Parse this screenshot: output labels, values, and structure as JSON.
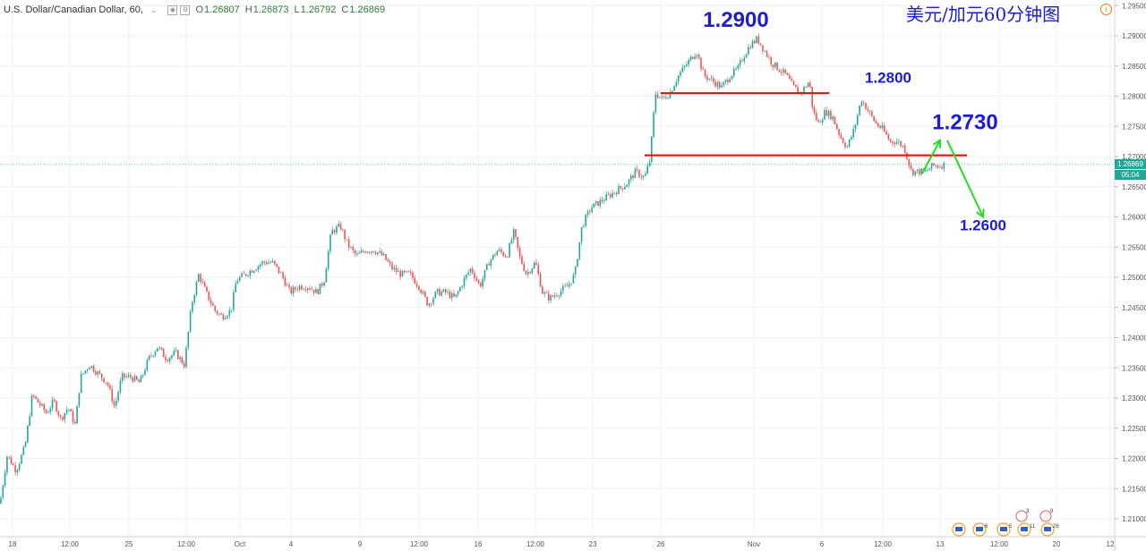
{
  "header": {
    "symbol": "U.S. Dollar/Canadian Dollar, 60,",
    "chevron": "⌄",
    "ohlc": [
      {
        "label": "O",
        "value": "1.26807"
      },
      {
        "label": "H",
        "value": "1.26873"
      },
      {
        "label": "L",
        "value": "1.26792"
      },
      {
        "label": "C",
        "value": "1.26869"
      }
    ]
  },
  "title_cn": "美元/加元60分钟图",
  "info_icon": "info-icon",
  "price_tag": {
    "price": "1.26869",
    "countdown": "05:04"
  },
  "colors": {
    "up": "#26a69a",
    "down": "#ef5350",
    "support": "#ff0000",
    "arrow": "#22dd22",
    "annotation": "#1c1cd6",
    "grid": "#eef0f3",
    "axis_text": "#555555"
  },
  "chart_data": {
    "type": "candlestick",
    "ylim": [
      1.205,
      1.2955
    ],
    "y_ticks": [
      {
        "value": 1.21,
        "label": "1.21000"
      },
      {
        "value": 1.215,
        "label": "1.21500"
      },
      {
        "value": 1.22,
        "label": "1.22000"
      },
      {
        "value": 1.225,
        "label": "1.22500"
      },
      {
        "value": 1.23,
        "label": "1.23000"
      },
      {
        "value": 1.235,
        "label": "1.23500"
      },
      {
        "value": 1.24,
        "label": "1.24000"
      },
      {
        "value": 1.245,
        "label": "1.24500"
      },
      {
        "value": 1.25,
        "label": "1.25000"
      },
      {
        "value": 1.255,
        "label": "1.25500"
      },
      {
        "value": 1.26,
        "label": "1.26000"
      },
      {
        "value": 1.265,
        "label": "1.26500"
      },
      {
        "value": 1.27,
        "label": "1.27000"
      },
      {
        "value": 1.275,
        "label": "1.27500"
      },
      {
        "value": 1.28,
        "label": "1.28000"
      },
      {
        "value": 1.285,
        "label": "1.28500"
      },
      {
        "value": 1.29,
        "label": "1.29000"
      },
      {
        "value": 1.295,
        "label": "1.29500"
      }
    ],
    "x_ticks": [
      {
        "t": 14,
        "label": "18"
      },
      {
        "t": 78,
        "label": "12:00"
      },
      {
        "t": 144,
        "label": "25"
      },
      {
        "t": 208,
        "label": "12:00"
      },
      {
        "t": 268,
        "label": "Oct"
      },
      {
        "t": 325,
        "label": "4"
      },
      {
        "t": 402,
        "label": "9"
      },
      {
        "t": 468,
        "label": "12:00"
      },
      {
        "t": 534,
        "label": "16"
      },
      {
        "t": 598,
        "label": "12:00"
      },
      {
        "t": 662,
        "label": "23"
      },
      {
        "t": 738,
        "label": "26"
      },
      {
        "t": 842,
        "label": "Nov"
      },
      {
        "t": 918,
        "label": "6"
      },
      {
        "t": 986,
        "label": "12:00"
      },
      {
        "t": 1050,
        "label": "13"
      },
      {
        "t": 1116,
        "label": "12:00"
      },
      {
        "t": 1180,
        "label": "20"
      },
      {
        "t": 1240,
        "label": "12"
      }
    ],
    "path": [
      [
        0,
        1.2125
      ],
      [
        8,
        1.2205
      ],
      [
        18,
        1.218
      ],
      [
        28,
        1.222
      ],
      [
        36,
        1.2305
      ],
      [
        44,
        1.229
      ],
      [
        52,
        1.2275
      ],
      [
        60,
        1.2295
      ],
      [
        68,
        1.2265
      ],
      [
        76,
        1.2285
      ],
      [
        84,
        1.2255
      ],
      [
        90,
        1.2335
      ],
      [
        100,
        1.2355
      ],
      [
        110,
        1.234
      ],
      [
        120,
        1.2325
      ],
      [
        128,
        1.2285
      ],
      [
        136,
        1.2335
      ],
      [
        146,
        1.2335
      ],
      [
        156,
        1.2325
      ],
      [
        166,
        1.2365
      ],
      [
        176,
        1.2385
      ],
      [
        186,
        1.2365
      ],
      [
        196,
        1.2375
      ],
      [
        206,
        1.2355
      ],
      [
        214,
        1.2455
      ],
      [
        222,
        1.2505
      ],
      [
        230,
        1.2475
      ],
      [
        240,
        1.2445
      ],
      [
        248,
        1.2435
      ],
      [
        258,
        1.2445
      ],
      [
        264,
        1.2495
      ],
      [
        274,
        1.2505
      ],
      [
        284,
        1.2515
      ],
      [
        294,
        1.2525
      ],
      [
        304,
        1.2525
      ],
      [
        314,
        1.2505
      ],
      [
        324,
        1.2475
      ],
      [
        334,
        1.2485
      ],
      [
        344,
        1.2485
      ],
      [
        354,
        1.2475
      ],
      [
        362,
        1.2495
      ],
      [
        370,
        1.2575
      ],
      [
        380,
        1.2585
      ],
      [
        388,
        1.2555
      ],
      [
        398,
        1.2535
      ],
      [
        408,
        1.2545
      ],
      [
        418,
        1.2545
      ],
      [
        428,
        1.2535
      ],
      [
        438,
        1.2515
      ],
      [
        448,
        1.2505
      ],
      [
        458,
        1.2505
      ],
      [
        468,
        1.2485
      ],
      [
        478,
        1.2455
      ],
      [
        488,
        1.2475
      ],
      [
        498,
        1.2475
      ],
      [
        508,
        1.2465
      ],
      [
        518,
        1.2495
      ],
      [
        526,
        1.2515
      ],
      [
        536,
        1.2485
      ],
      [
        546,
        1.2525
      ],
      [
        556,
        1.2545
      ],
      [
        566,
        1.2535
      ],
      [
        574,
        1.2575
      ],
      [
        580,
        1.2535
      ],
      [
        588,
        1.2505
      ],
      [
        598,
        1.2525
      ],
      [
        606,
        1.2475
      ],
      [
        614,
        1.2465
      ],
      [
        624,
        1.2475
      ],
      [
        634,
        1.2485
      ],
      [
        642,
        1.2505
      ],
      [
        650,
        1.2585
      ],
      [
        660,
        1.2615
      ],
      [
        670,
        1.2625
      ],
      [
        680,
        1.2635
      ],
      [
        690,
        1.2645
      ],
      [
        700,
        1.2655
      ],
      [
        710,
        1.2675
      ],
      [
        720,
        1.2665
      ],
      [
        726,
        1.2695
      ],
      [
        732,
        1.2805
      ],
      [
        740,
        1.2795
      ],
      [
        748,
        1.2805
      ],
      [
        758,
        1.2835
      ],
      [
        768,
        1.2855
      ],
      [
        778,
        1.2875
      ],
      [
        786,
        1.2835
      ],
      [
        796,
        1.2825
      ],
      [
        806,
        1.2815
      ],
      [
        816,
        1.2835
      ],
      [
        824,
        1.2845
      ],
      [
        830,
        1.2865
      ],
      [
        838,
        1.2885
      ],
      [
        846,
        1.2895
      ],
      [
        854,
        1.2875
      ],
      [
        862,
        1.2855
      ],
      [
        870,
        1.2845
      ],
      [
        878,
        1.2835
      ],
      [
        886,
        1.2815
      ],
      [
        894,
        1.2805
      ],
      [
        904,
        1.2825
      ],
      [
        908,
        1.2775
      ],
      [
        914,
        1.2755
      ],
      [
        922,
        1.2775
      ],
      [
        930,
        1.2765
      ],
      [
        938,
        1.2735
      ],
      [
        946,
        1.2715
      ],
      [
        954,
        1.2745
      ],
      [
        962,
        1.2795
      ],
      [
        970,
        1.2775
      ],
      [
        978,
        1.2755
      ],
      [
        986,
        1.2745
      ],
      [
        994,
        1.2725
      ],
      [
        1002,
        1.2725
      ],
      [
        1010,
        1.2715
      ],
      [
        1018,
        1.2675
      ],
      [
        1026,
        1.2675
      ],
      [
        1034,
        1.2675
      ],
      [
        1042,
        1.2685
      ],
      [
        1050,
        1.2685
      ],
      [
        1056,
        1.2687
      ]
    ],
    "support_lines": [
      {
        "x1": 738,
        "x2": 926,
        "y": 1.2805
      },
      {
        "x1": 720,
        "x2": 1080,
        "y": 1.2702
      }
    ],
    "arrows": [
      {
        "from": [
          1030,
          1.2672
        ],
        "to": [
          1050,
          1.2727
        ]
      },
      {
        "from": [
          1058,
          1.2727
        ],
        "to": [
          1098,
          1.26
        ]
      }
    ],
    "annotations": [
      {
        "text": "1.2900",
        "t": 822,
        "y": 1.2915,
        "size": 24
      },
      {
        "text": "1.2800",
        "t": 992,
        "y": 1.2822,
        "size": 17
      },
      {
        "text": "1.2730",
        "t": 1078,
        "y": 1.2745,
        "size": 24
      },
      {
        "text": "1.2600",
        "t": 1098,
        "y": 1.2578,
        "size": 17
      }
    ],
    "current_price": 1.26869,
    "event_markers": {
      "top": [
        {
          "t": 1141,
          "text": "3"
        },
        {
          "t": 1168,
          "text": "9"
        }
      ],
      "bottom": [
        {
          "t": 1071,
          "text": ""
        },
        {
          "t": 1094,
          "text": "6"
        },
        {
          "t": 1121,
          "text": "5"
        },
        {
          "t": 1144,
          "text": "11"
        },
        {
          "t": 1170,
          "text": "28"
        }
      ]
    }
  }
}
